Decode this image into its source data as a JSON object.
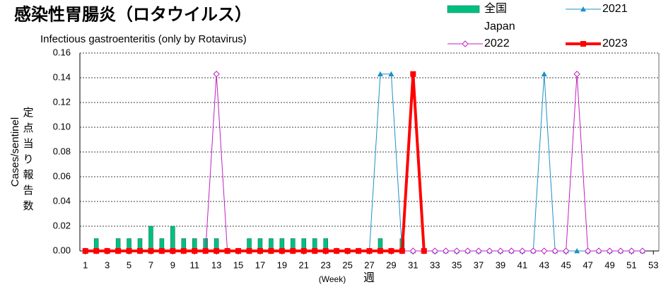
{
  "chart_data": {
    "type": "bar",
    "title": "感染性胃腸炎（ロタウイルス）",
    "subtitle": "Infectious gastroenteritis (only by Rotavirus)",
    "y_label": "Cases/sentinel",
    "y_label_ja": "定点当り報告数",
    "x_label": "(Week)",
    "x_label_ja": "週",
    "x": [
      1,
      2,
      3,
      4,
      5,
      6,
      7,
      8,
      9,
      10,
      11,
      12,
      13,
      14,
      15,
      16,
      17,
      18,
      19,
      20,
      21,
      22,
      23,
      24,
      25,
      26,
      27,
      28,
      29,
      30,
      31,
      32,
      33,
      34,
      35,
      36,
      37,
      38,
      39,
      40,
      41,
      42,
      43,
      44,
      45,
      46,
      47,
      48,
      49,
      50,
      51,
      52,
      53
    ],
    "xlim": [
      0.5,
      53.5
    ],
    "xticks": [
      1,
      3,
      5,
      7,
      9,
      11,
      13,
      15,
      17,
      19,
      21,
      23,
      25,
      27,
      29,
      31,
      33,
      35,
      37,
      39,
      41,
      43,
      45,
      47,
      49,
      51,
      53
    ],
    "ylim": [
      0,
      0.16
    ],
    "yticks": [
      {
        "value": 0,
        "label": "0.00"
      },
      {
        "value": 0.02,
        "label": "0.02"
      },
      {
        "value": 0.04,
        "label": "0.04"
      },
      {
        "value": 0.06,
        "label": "0.06"
      },
      {
        "value": 0.08,
        "label": "0.08"
      },
      {
        "value": 0.1,
        "label": "0.10"
      },
      {
        "value": 0.12,
        "label": "0.12"
      },
      {
        "value": 0.14,
        "label": "0.14"
      },
      {
        "value": 0.16,
        "label": "0.16"
      }
    ],
    "grid": true,
    "series": [
      {
        "name": "全国 Japan",
        "type": "bar",
        "color": "#00c080",
        "values": [
          0,
          0.01,
          0,
          0.01,
          0.01,
          0.01,
          0.02,
          0.01,
          0.02,
          0.01,
          0.01,
          0.01,
          0.01,
          0,
          0,
          0.01,
          0.01,
          0.01,
          0.01,
          0.01,
          0.01,
          0.01,
          0.01,
          0,
          0,
          0,
          0,
          0.01,
          0,
          0.01,
          0,
          null,
          null,
          null,
          null,
          null,
          null,
          null,
          null,
          null,
          null,
          null,
          null,
          null,
          null,
          null,
          null,
          null,
          null,
          null,
          null,
          null,
          null
        ]
      },
      {
        "name": "2021",
        "type": "line",
        "color": "#1e90c8",
        "marker": "triangle",
        "values": [
          0,
          0,
          0,
          0,
          0,
          0,
          0,
          0,
          0,
          0,
          0,
          0,
          0,
          0,
          0,
          0,
          0,
          0,
          0,
          0,
          0,
          0,
          0,
          0,
          0,
          0,
          0,
          0.143,
          0.143,
          0,
          0,
          0,
          0,
          0,
          0,
          0,
          0,
          0,
          0,
          0,
          0,
          0,
          0.143,
          0,
          0,
          0,
          0,
          0,
          0,
          0,
          0,
          0,
          null
        ]
      },
      {
        "name": "2022",
        "type": "line",
        "color": "#c020c0",
        "marker": "diamond",
        "values": [
          0,
          0,
          0,
          0,
          0,
          0,
          0,
          0,
          0,
          0,
          0,
          0,
          0.143,
          0,
          0,
          0,
          0,
          0,
          0,
          0,
          0,
          0,
          0,
          0,
          0,
          0,
          0,
          0,
          0,
          0,
          0,
          0,
          0,
          0,
          0,
          0,
          0,
          0,
          0,
          0,
          0,
          0,
          0,
          0,
          0,
          0.143,
          0,
          0,
          0,
          0,
          0,
          0,
          null
        ]
      },
      {
        "name": "2023",
        "type": "line",
        "color": "#ff0000",
        "marker": "square",
        "values": [
          0,
          0,
          0,
          0,
          0,
          0,
          0,
          0,
          0,
          0,
          0,
          0,
          0,
          0,
          0,
          0,
          0,
          0,
          0,
          0,
          0,
          0,
          0,
          0,
          0,
          0,
          0,
          0,
          0,
          0,
          0.143,
          0,
          null,
          null,
          null,
          null,
          null,
          null,
          null,
          null,
          null,
          null,
          null,
          null,
          null,
          null,
          null,
          null,
          null,
          null,
          null,
          null,
          null
        ]
      }
    ]
  }
}
